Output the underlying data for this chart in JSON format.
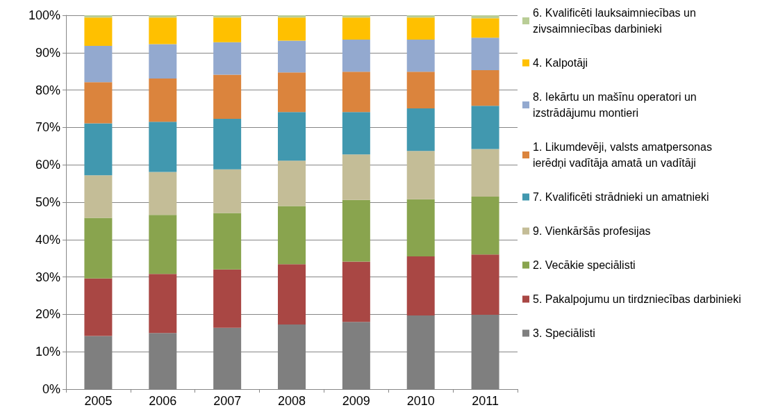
{
  "chart_data": {
    "type": "bar",
    "stacked": true,
    "grid": "y",
    "legend": "right",
    "categories": [
      "2005",
      "2006",
      "2007",
      "2008",
      "2009",
      "2010",
      "2011"
    ],
    "ylim": [
      0,
      100
    ],
    "yticks": [
      {
        "value": 0,
        "label": "0%"
      },
      {
        "value": 10,
        "label": "10%"
      },
      {
        "value": 20,
        "label": "20%"
      },
      {
        "value": 30,
        "label": "30%"
      },
      {
        "value": 40,
        "label": "40%"
      },
      {
        "value": 50,
        "label": "50%"
      },
      {
        "value": 60,
        "label": "60%"
      },
      {
        "value": 70,
        "label": "70%"
      },
      {
        "value": 80,
        "label": "80%"
      },
      {
        "value": 90,
        "label": "90%"
      },
      {
        "value": 100,
        "label": "100%"
      }
    ],
    "series": [
      {
        "name": "3. Speciālisti",
        "color": "#7f7f7f",
        "values": [
          14.2,
          15,
          16.4,
          17.3,
          18,
          19.7,
          19.9
        ]
      },
      {
        "name": "5. Pakalpojumu un tirdzniecības darbinieki",
        "color": "#a94744",
        "values": [
          15.4,
          15.8,
          15.6,
          16.1,
          16.1,
          15.8,
          16.1
        ]
      },
      {
        "name": "2. Vecākie speciālisti",
        "color": "#89a44e",
        "values": [
          16.2,
          15.8,
          15.1,
          15.6,
          16.5,
          15.3,
          15.5
        ]
      },
      {
        "name": "9. Vienkāršās profesijas",
        "color": "#c4bd97",
        "values": [
          11.4,
          11.5,
          11.7,
          12.1,
          12.2,
          12.9,
          12.7
        ]
      },
      {
        "name": "7. Kvalificēti strādnieki un amatnieki",
        "color": "#4198af",
        "values": [
          13.9,
          13.4,
          13.5,
          13.0,
          11.3,
          11.4,
          11.6
        ]
      },
      {
        "name": "1. Likumdevēji, valsts amatpersonas ierēdņi vadītāja amatā un vadītāji",
        "color": "#db843d",
        "values": [
          11.0,
          11.6,
          11.8,
          10.6,
          10.8,
          9.8,
          9.5
        ]
      },
      {
        "name": "8. Iekārtu un mašīnu operatori un izstrādājumu montieri",
        "color": "#93a9cf",
        "values": [
          9.7,
          9.2,
          8.7,
          8.5,
          8.6,
          8.6,
          8.7
        ]
      },
      {
        "name": "4. Kalpotāji",
        "color": "#ffc000",
        "values": [
          7.6,
          7.1,
          6.6,
          6.2,
          5.9,
          5.9,
          5.2
        ]
      },
      {
        "name": "6. Kvalificēti lauksaimniecības un zivsaimniecības darbinieki",
        "color": "#b9cd96",
        "values": [
          0.6,
          0.6,
          0.6,
          0.6,
          0.6,
          0.6,
          0.8
        ]
      }
    ]
  }
}
